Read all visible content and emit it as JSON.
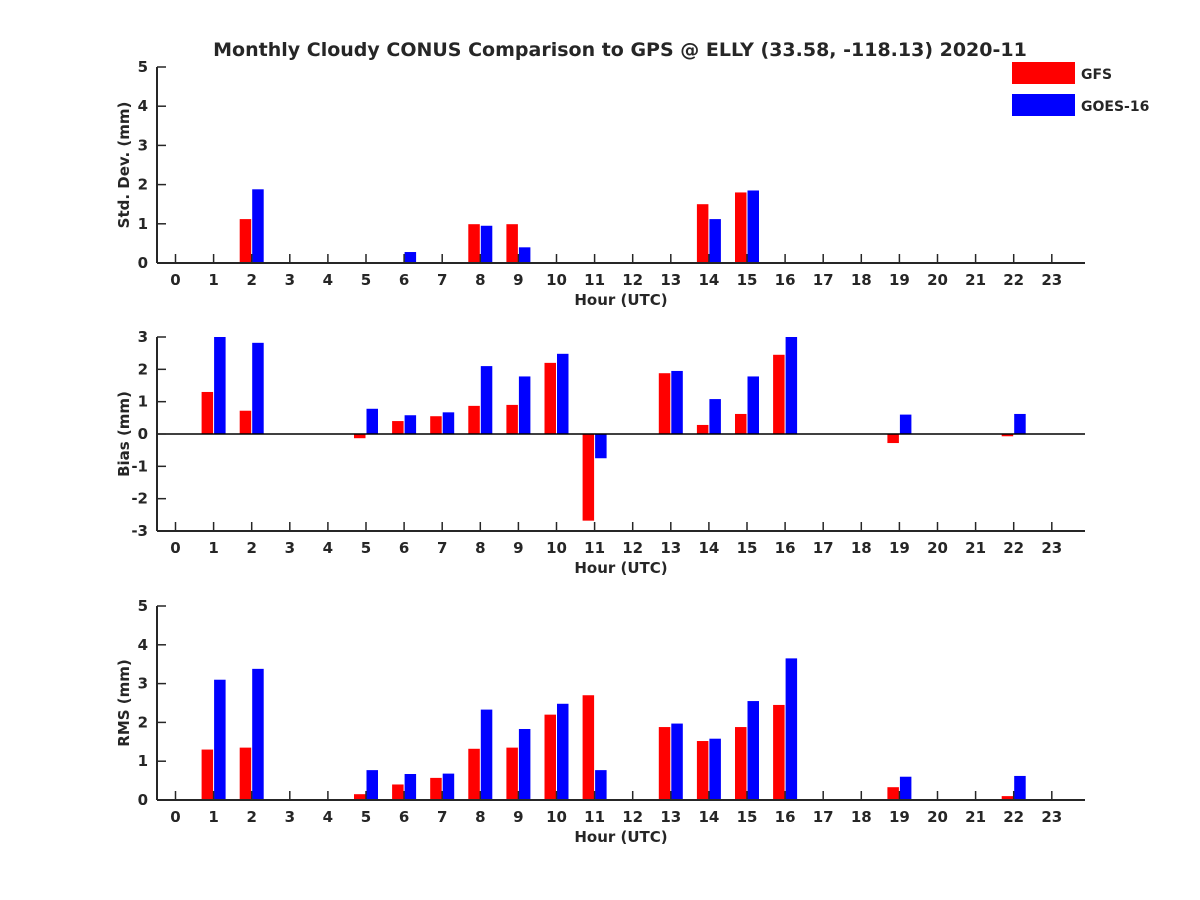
{
  "title": "Monthly Cloudy CONUS Comparison to GPS @ ELLY (33.58, -118.13) 2020-11",
  "legend": [
    {
      "name": "GFS",
      "color": "#ff0000"
    },
    {
      "name": "GOES-16",
      "color": "#0000ff"
    }
  ],
  "chart_data": [
    {
      "type": "bar",
      "xlabel": "Hour (UTC)",
      "ylabel": "Std. Dev. (mm)",
      "ylim": [
        0,
        5
      ],
      "yticks": [
        0,
        1,
        2,
        3,
        4,
        5
      ],
      "xticks": [
        0,
        1,
        2,
        3,
        4,
        5,
        6,
        7,
        8,
        9,
        10,
        11,
        12,
        13,
        14,
        15,
        16,
        17,
        18,
        19,
        20,
        21,
        22,
        23
      ],
      "series": [
        {
          "name": "GFS",
          "color": "#ff0000",
          "values": [
            null,
            null,
            1.12,
            null,
            null,
            null,
            null,
            null,
            0.99,
            0.99,
            null,
            null,
            null,
            null,
            1.5,
            1.8,
            null,
            null,
            null,
            null,
            null,
            null,
            null,
            null
          ]
        },
        {
          "name": "GOES-16",
          "color": "#0000ff",
          "values": [
            null,
            null,
            1.88,
            null,
            null,
            null,
            0.28,
            null,
            0.95,
            0.4,
            null,
            null,
            null,
            null,
            1.12,
            1.85,
            null,
            null,
            null,
            null,
            null,
            null,
            null,
            null
          ]
        }
      ]
    },
    {
      "type": "bar",
      "xlabel": "Hour (UTC)",
      "ylabel": "Bias (mm)",
      "ylim": [
        -3,
        3
      ],
      "yticks": [
        -3,
        -2,
        -1,
        0,
        1,
        2,
        3
      ],
      "xticks": [
        0,
        1,
        2,
        3,
        4,
        5,
        6,
        7,
        8,
        9,
        10,
        11,
        12,
        13,
        14,
        15,
        16,
        17,
        18,
        19,
        20,
        21,
        22,
        23
      ],
      "zero_line": true,
      "series": [
        {
          "name": "GFS",
          "color": "#ff0000",
          "values": [
            null,
            1.3,
            0.72,
            null,
            null,
            -0.13,
            0.4,
            0.55,
            0.87,
            0.9,
            2.2,
            -2.68,
            null,
            1.88,
            0.28,
            0.62,
            2.45,
            null,
            null,
            -0.28,
            null,
            null,
            -0.07,
            null
          ]
        },
        {
          "name": "GOES-16",
          "color": "#0000ff",
          "values": [
            null,
            3.0,
            2.82,
            null,
            null,
            0.78,
            0.58,
            0.67,
            2.1,
            1.78,
            2.48,
            -0.75,
            null,
            1.95,
            1.08,
            1.78,
            3.0,
            null,
            null,
            0.6,
            null,
            null,
            0.62,
            null
          ]
        }
      ]
    },
    {
      "type": "bar",
      "xlabel": "Hour (UTC)",
      "ylabel": "RMS (mm)",
      "ylim": [
        0,
        5
      ],
      "yticks": [
        0,
        1,
        2,
        3,
        4,
        5
      ],
      "xticks": [
        0,
        1,
        2,
        3,
        4,
        5,
        6,
        7,
        8,
        9,
        10,
        11,
        12,
        13,
        14,
        15,
        16,
        17,
        18,
        19,
        20,
        21,
        22,
        23
      ],
      "series": [
        {
          "name": "GFS",
          "color": "#ff0000",
          "values": [
            null,
            1.3,
            1.35,
            null,
            null,
            0.15,
            0.4,
            0.57,
            1.32,
            1.35,
            2.2,
            2.7,
            null,
            1.88,
            1.52,
            1.88,
            2.45,
            null,
            null,
            0.33,
            null,
            null,
            0.1,
            null
          ]
        },
        {
          "name": "GOES-16",
          "color": "#0000ff",
          "values": [
            null,
            3.1,
            3.38,
            null,
            null,
            0.77,
            0.67,
            0.68,
            2.33,
            1.83,
            2.48,
            0.77,
            null,
            1.97,
            1.58,
            2.55,
            3.65,
            null,
            null,
            0.6,
            null,
            null,
            0.62,
            null
          ]
        }
      ]
    }
  ]
}
